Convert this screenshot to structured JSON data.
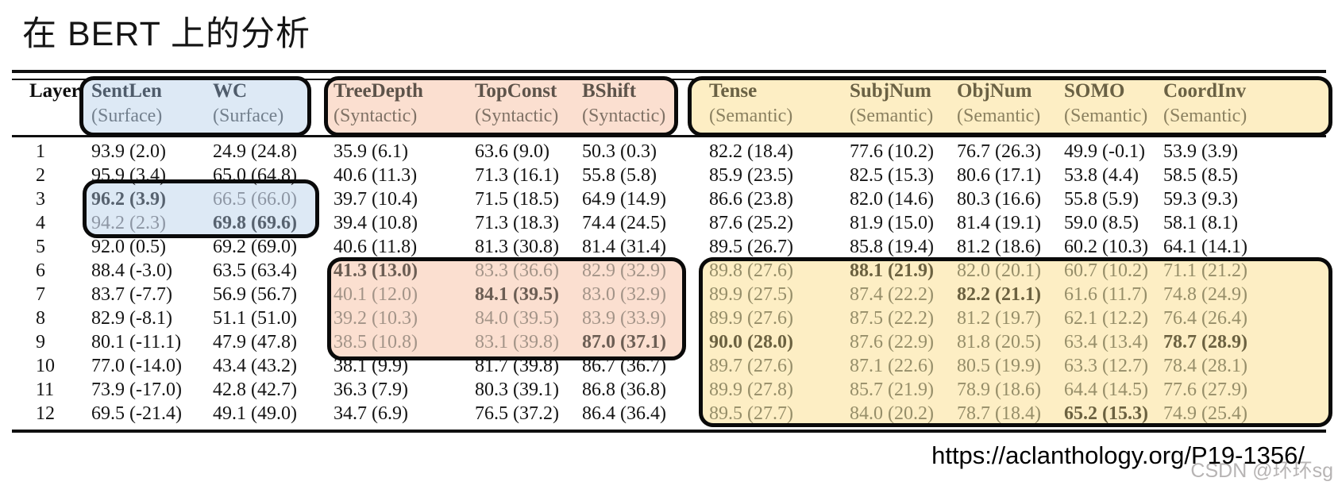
{
  "title": "在 BERT 上的分析",
  "footer": {
    "url": "https://aclanthology.org/P19-1356/",
    "watermark": "CSDN @环环sg"
  },
  "table": {
    "layer_header": "Layer",
    "columns": [
      {
        "label": "SentLen",
        "sub": "(Surface)"
      },
      {
        "label": "WC",
        "sub": "(Surface)"
      },
      {
        "label": "TreeDepth",
        "sub": "(Syntactic)"
      },
      {
        "label": "TopConst",
        "sub": "(Syntactic)"
      },
      {
        "label": "BShift",
        "sub": "(Syntactic)"
      },
      {
        "label": "Tense",
        "sub": "(Semantic)"
      },
      {
        "label": "SubjNum",
        "sub": "(Semantic)"
      },
      {
        "label": "ObjNum",
        "sub": "(Semantic)"
      },
      {
        "label": "SOMO",
        "sub": "(Semantic)"
      },
      {
        "label": "CoordInv",
        "sub": "(Semantic)"
      }
    ],
    "rows": [
      {
        "layer": "1",
        "values": [
          "93.9 (2.0)",
          "24.9 (24.8)",
          "35.9 (6.1)",
          "63.6 (9.0)",
          "50.3 (0.3)",
          "82.2 (18.4)",
          "77.6 (10.2)",
          "76.7 (26.3)",
          "49.9 (-0.1)",
          "53.9 (3.9)"
        ]
      },
      {
        "layer": "2",
        "values": [
          "95.9 (3.4)",
          "65.0 (64.8)",
          "40.6 (11.3)",
          "71.3 (16.1)",
          "55.8 (5.8)",
          "85.9 (23.5)",
          "82.5 (15.3)",
          "80.6 (17.1)",
          "53.8 (4.4)",
          "58.5 (8.5)"
        ]
      },
      {
        "layer": "3",
        "values": [
          "96.2 (3.9)",
          "66.5 (66.0)",
          "39.7 (10.4)",
          "71.5 (18.5)",
          "64.9 (14.9)",
          "86.6 (23.8)",
          "82.0 (14.6)",
          "80.3 (16.6)",
          "55.8 (5.9)",
          "59.3 (9.3)"
        ]
      },
      {
        "layer": "4",
        "values": [
          "94.2 (2.3)",
          "69.8 (69.6)",
          "39.4 (10.8)",
          "71.3 (18.3)",
          "74.4 (24.5)",
          "87.6 (25.2)",
          "81.9 (15.0)",
          "81.4 (19.1)",
          "59.0 (8.5)",
          "58.1 (8.1)"
        ]
      },
      {
        "layer": "5",
        "values": [
          "92.0 (0.5)",
          "69.2 (69.0)",
          "40.6 (11.8)",
          "81.3 (30.8)",
          "81.4 (31.4)",
          "89.5 (26.7)",
          "85.8 (19.4)",
          "81.2 (18.6)",
          "60.2 (10.3)",
          "64.1 (14.1)"
        ]
      },
      {
        "layer": "6",
        "values": [
          "88.4 (-3.0)",
          "63.5 (63.4)",
          "41.3 (13.0)",
          "83.3 (36.6)",
          "82.9 (32.9)",
          "89.8 (27.6)",
          "88.1 (21.9)",
          "82.0 (20.1)",
          "60.7 (10.2)",
          "71.1 (21.2)"
        ]
      },
      {
        "layer": "7",
        "values": [
          "83.7 (-7.7)",
          "56.9 (56.7)",
          "40.1 (12.0)",
          "84.1 (39.5)",
          "83.0 (32.9)",
          "89.9 (27.5)",
          "87.4 (22.2)",
          "82.2 (21.1)",
          "61.6 (11.7)",
          "74.8 (24.9)"
        ]
      },
      {
        "layer": "8",
        "values": [
          "82.9 (-8.1)",
          "51.1 (51.0)",
          "39.2 (10.3)",
          "84.0 (39.5)",
          "83.9 (33.9)",
          "89.9 (27.6)",
          "87.5 (22.2)",
          "81.2 (19.7)",
          "62.1 (12.2)",
          "76.4 (26.4)"
        ]
      },
      {
        "layer": "9",
        "values": [
          "80.1 (-11.1)",
          "47.9 (47.8)",
          "38.5 (10.8)",
          "83.1 (39.8)",
          "87.0 (37.1)",
          "90.0 (28.0)",
          "87.6 (22.9)",
          "81.8 (20.5)",
          "63.4 (13.4)",
          "78.7 (28.9)"
        ]
      },
      {
        "layer": "10",
        "values": [
          "77.0 (-14.0)",
          "43.4 (43.2)",
          "38.1 (9.9)",
          "81.7 (39.8)",
          "86.7 (36.7)",
          "89.7 (27.6)",
          "87.1 (22.6)",
          "80.5 (19.9)",
          "63.3 (12.7)",
          "78.4 (28.1)"
        ]
      },
      {
        "layer": "11",
        "values": [
          "73.9 (-17.0)",
          "42.8 (42.7)",
          "36.3 (7.9)",
          "80.3 (39.1)",
          "86.8 (36.8)",
          "89.9 (27.8)",
          "85.7 (21.9)",
          "78.9 (18.6)",
          "64.4 (14.5)",
          "77.6 (27.9)"
        ]
      },
      {
        "layer": "12",
        "values": [
          "69.5 (-21.4)",
          "49.1 (49.0)",
          "34.7 (6.9)",
          "76.5 (37.2)",
          "86.4 (36.4)",
          "89.5 (27.7)",
          "84.0 (20.2)",
          "78.7 (18.4)",
          "65.2 (15.3)",
          "74.9 (25.4)"
        ]
      }
    ],
    "bold_cells": [
      [
        3,
        0
      ],
      [
        4,
        1
      ],
      [
        6,
        2
      ],
      [
        7,
        3
      ],
      [
        9,
        4
      ],
      [
        9,
        5
      ],
      [
        6,
        6
      ],
      [
        7,
        7
      ],
      [
        12,
        8
      ],
      [
        9,
        9
      ]
    ],
    "highlight_regions": [
      {
        "name": "blue",
        "group": "surface",
        "fill": "#dde9f5",
        "col_start": 0,
        "col_end": 1,
        "layer_start": 3,
        "layer_end": 4
      },
      {
        "name": "pink",
        "group": "syntactic",
        "fill": "#fbdfd0",
        "col_start": 2,
        "col_end": 4,
        "layer_start": 6,
        "layer_end": 9
      },
      {
        "name": "yellow",
        "group": "semantic",
        "fill": "#fdeec4",
        "col_start": 5,
        "col_end": 9,
        "layer_start": 6,
        "layer_end": 12
      }
    ],
    "box_border_color": "#0a0a0a"
  }
}
